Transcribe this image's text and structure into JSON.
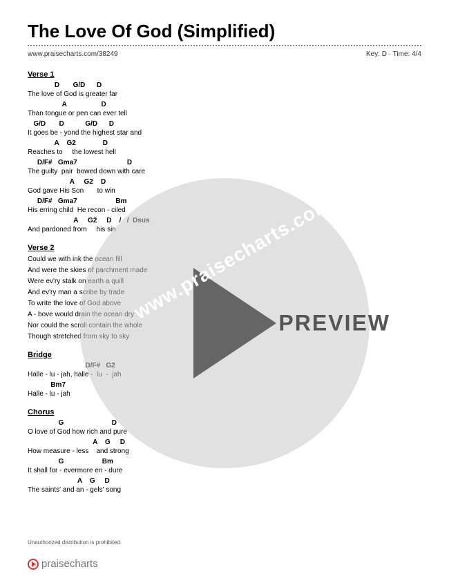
{
  "title": "The Love Of God (Simplified)",
  "url": "www.praisecharts.com/38249",
  "meta": "Key: D · Time: 4/4",
  "sections": [
    {
      "header": "Verse 1",
      "lines": [
        {
          "chords": "              D       G/D      D",
          "lyric": "The love of God is greater far"
        },
        {
          "chords": "                  A                  D",
          "lyric": "Than tongue or pen can ever tell"
        },
        {
          "chords": "   G/D       D           G/D      D",
          "lyric": "It goes be - yond the highest star and"
        },
        {
          "chords": "              A    G2              D",
          "lyric": "Reaches to     the lowest hell"
        },
        {
          "chords": "     D/F#   Gma7                          D",
          "lyric": "The guilty  pair  bowed down with care"
        },
        {
          "chords": "                      A     G2    D",
          "lyric": "God gave His Son       to win"
        },
        {
          "chords": "     D/F#   Gma7                    Bm",
          "lyric": "His erring child  He recon - ciled"
        },
        {
          "chords": "                        A     G2     D    /   /  Dsus",
          "lyric": "And pardoned from     his sin"
        }
      ]
    },
    {
      "header": "Verse 2",
      "lines": [
        {
          "chords": "",
          "lyric": "Could we with ink the ocean fill"
        },
        {
          "chords": "",
          "lyric": "And were the skies of parchment made"
        },
        {
          "chords": "",
          "lyric": "Were ev'ry stalk on earth a quill"
        },
        {
          "chords": "",
          "lyric": "And ev'ry man a scribe by trade"
        },
        {
          "chords": "",
          "lyric": "To write the love of God above"
        },
        {
          "chords": "",
          "lyric": "A - bove would drain the ocean dry"
        },
        {
          "chords": "",
          "lyric": "Nor could the scroll contain the whole"
        },
        {
          "chords": "",
          "lyric": "Though stretched from sky to sky"
        }
      ]
    },
    {
      "header": "Bridge",
      "lines": [
        {
          "chords": "                              D/F#   G2",
          "lyric": "Halle - lu - jah, halle -  lu  -  jah"
        },
        {
          "chords": "            Bm7",
          "lyric": "Halle - lu - jah"
        }
      ]
    },
    {
      "header": "Chorus",
      "lines": [
        {
          "chords": "                G                         D",
          "lyric": "O love of God how rich and pure"
        },
        {
          "chords": "                                  A    G     D",
          "lyric": "How measure - less    and strong"
        },
        {
          "chords": "                G                    Bm",
          "lyric": "It shall for - evermore en - dure"
        },
        {
          "chords": "                          A    G     D",
          "lyric": "The saints' and an - gels' song"
        }
      ]
    }
  ],
  "footer": "Unauthorized distribution is prohibited.",
  "logo_text": "praisecharts",
  "watermark": "www.praisecharts.com",
  "preview": "PREVIEW"
}
